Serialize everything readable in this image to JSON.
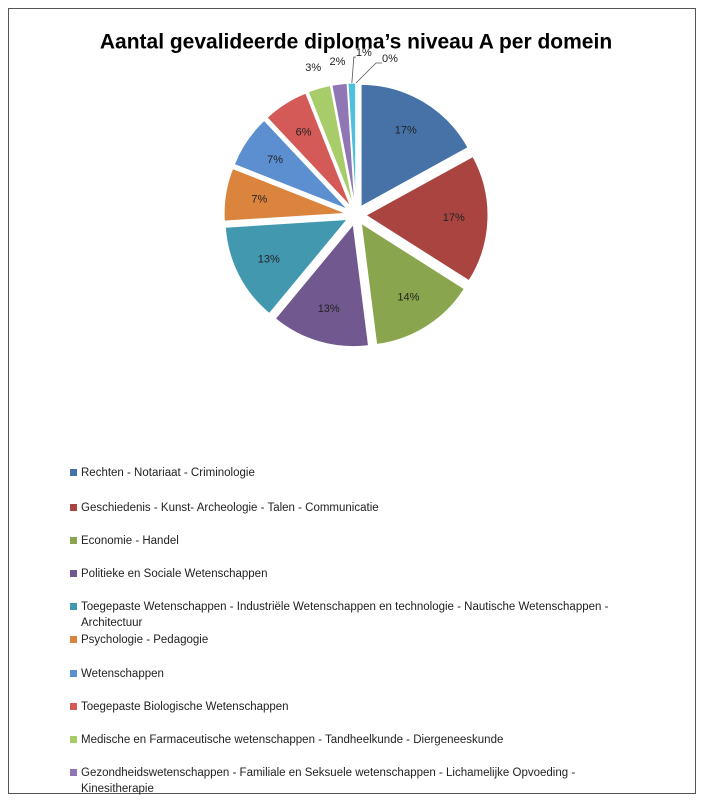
{
  "chart_data": {
    "type": "pie",
    "title": "Aantal gevalideerde diploma’s niveau A per domein",
    "categories": [
      "Rechten - Notariaat - Criminologie",
      "Geschiedenis - Kunst- Archeologie - Talen - Communicatie",
      "Economie - Handel",
      "Politieke en Sociale Wetenschappen",
      "Toegepaste Wetenschappen - Industriële Wetenschappen en technologie - Nautische Wetenschappen - Architectuur",
      "Psychologie - Pedagogie",
      "Wetenschappen",
      "Toegepaste Biologische Wetenschappen",
      "Medische en Farmaceutische wetenschappen - Tandheelkunde - Diergeneeskunde",
      "Gezondheidswetenschappen - Familiale en Seksuele wetenschappen - Lichamelijke Opvoeding - Kinesitherapie",
      null,
      null
    ],
    "values": [
      17,
      17,
      14,
      13,
      13,
      7,
      7,
      6,
      3,
      2,
      1,
      0
    ],
    "value_labels": [
      "17%",
      "17%",
      "14%",
      "13%",
      "13%",
      "7%",
      "7%",
      "6%",
      "3%",
      "2%",
      "1%",
      "0%"
    ],
    "colors": [
      "#4672a8",
      "#a94441",
      "#89a54e",
      "#71588f",
      "#4198af",
      "#db843d",
      "#5b8fd0",
      "#d45a57",
      "#a8cc6a",
      "#9076b5",
      "#4cc0dc",
      "#f9a95e"
    ]
  }
}
